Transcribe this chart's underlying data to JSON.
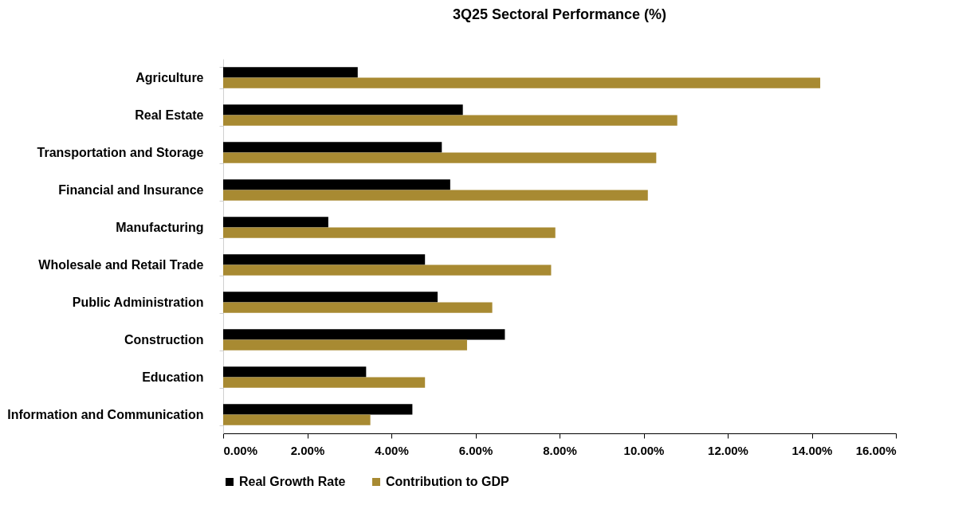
{
  "chart_data": {
    "type": "bar",
    "orientation": "horizontal",
    "title": "3Q25 Sectoral Performance (%)",
    "categories": [
      "Agriculture",
      "Real Estate",
      "Transportation and Storage",
      "Financial and Insurance ",
      "Manufacturing",
      "Wholesale and Retail Trade",
      "Public Administration",
      "Construction",
      "Education",
      "Information and Communication"
    ],
    "series": [
      {
        "name": "Real Growth Rate",
        "color": "#000000",
        "values": [
          3.2,
          5.7,
          5.2,
          5.4,
          2.5,
          4.8,
          5.1,
          6.7,
          3.4,
          4.5
        ]
      },
      {
        "name": "Contribution to GDP",
        "color": "#a88a32",
        "values": [
          14.2,
          10.8,
          10.3,
          10.1,
          7.9,
          7.8,
          6.4,
          5.8,
          4.8,
          3.5
        ]
      }
    ],
    "xlim": [
      0,
      16
    ],
    "xticks": [
      {
        "value": 0,
        "label": "0.00%"
      },
      {
        "value": 2,
        "label": "2.00%"
      },
      {
        "value": 4,
        "label": "4.00%"
      },
      {
        "value": 6,
        "label": "6.00%"
      },
      {
        "value": 8,
        "label": "8.00%"
      },
      {
        "value": 10,
        "label": "10.00%"
      },
      {
        "value": 12,
        "label": "12.00%"
      },
      {
        "value": 14,
        "label": "14.00%"
      },
      {
        "value": 16,
        "label": "16.00%"
      }
    ],
    "grid": false,
    "legend": "bottom"
  }
}
